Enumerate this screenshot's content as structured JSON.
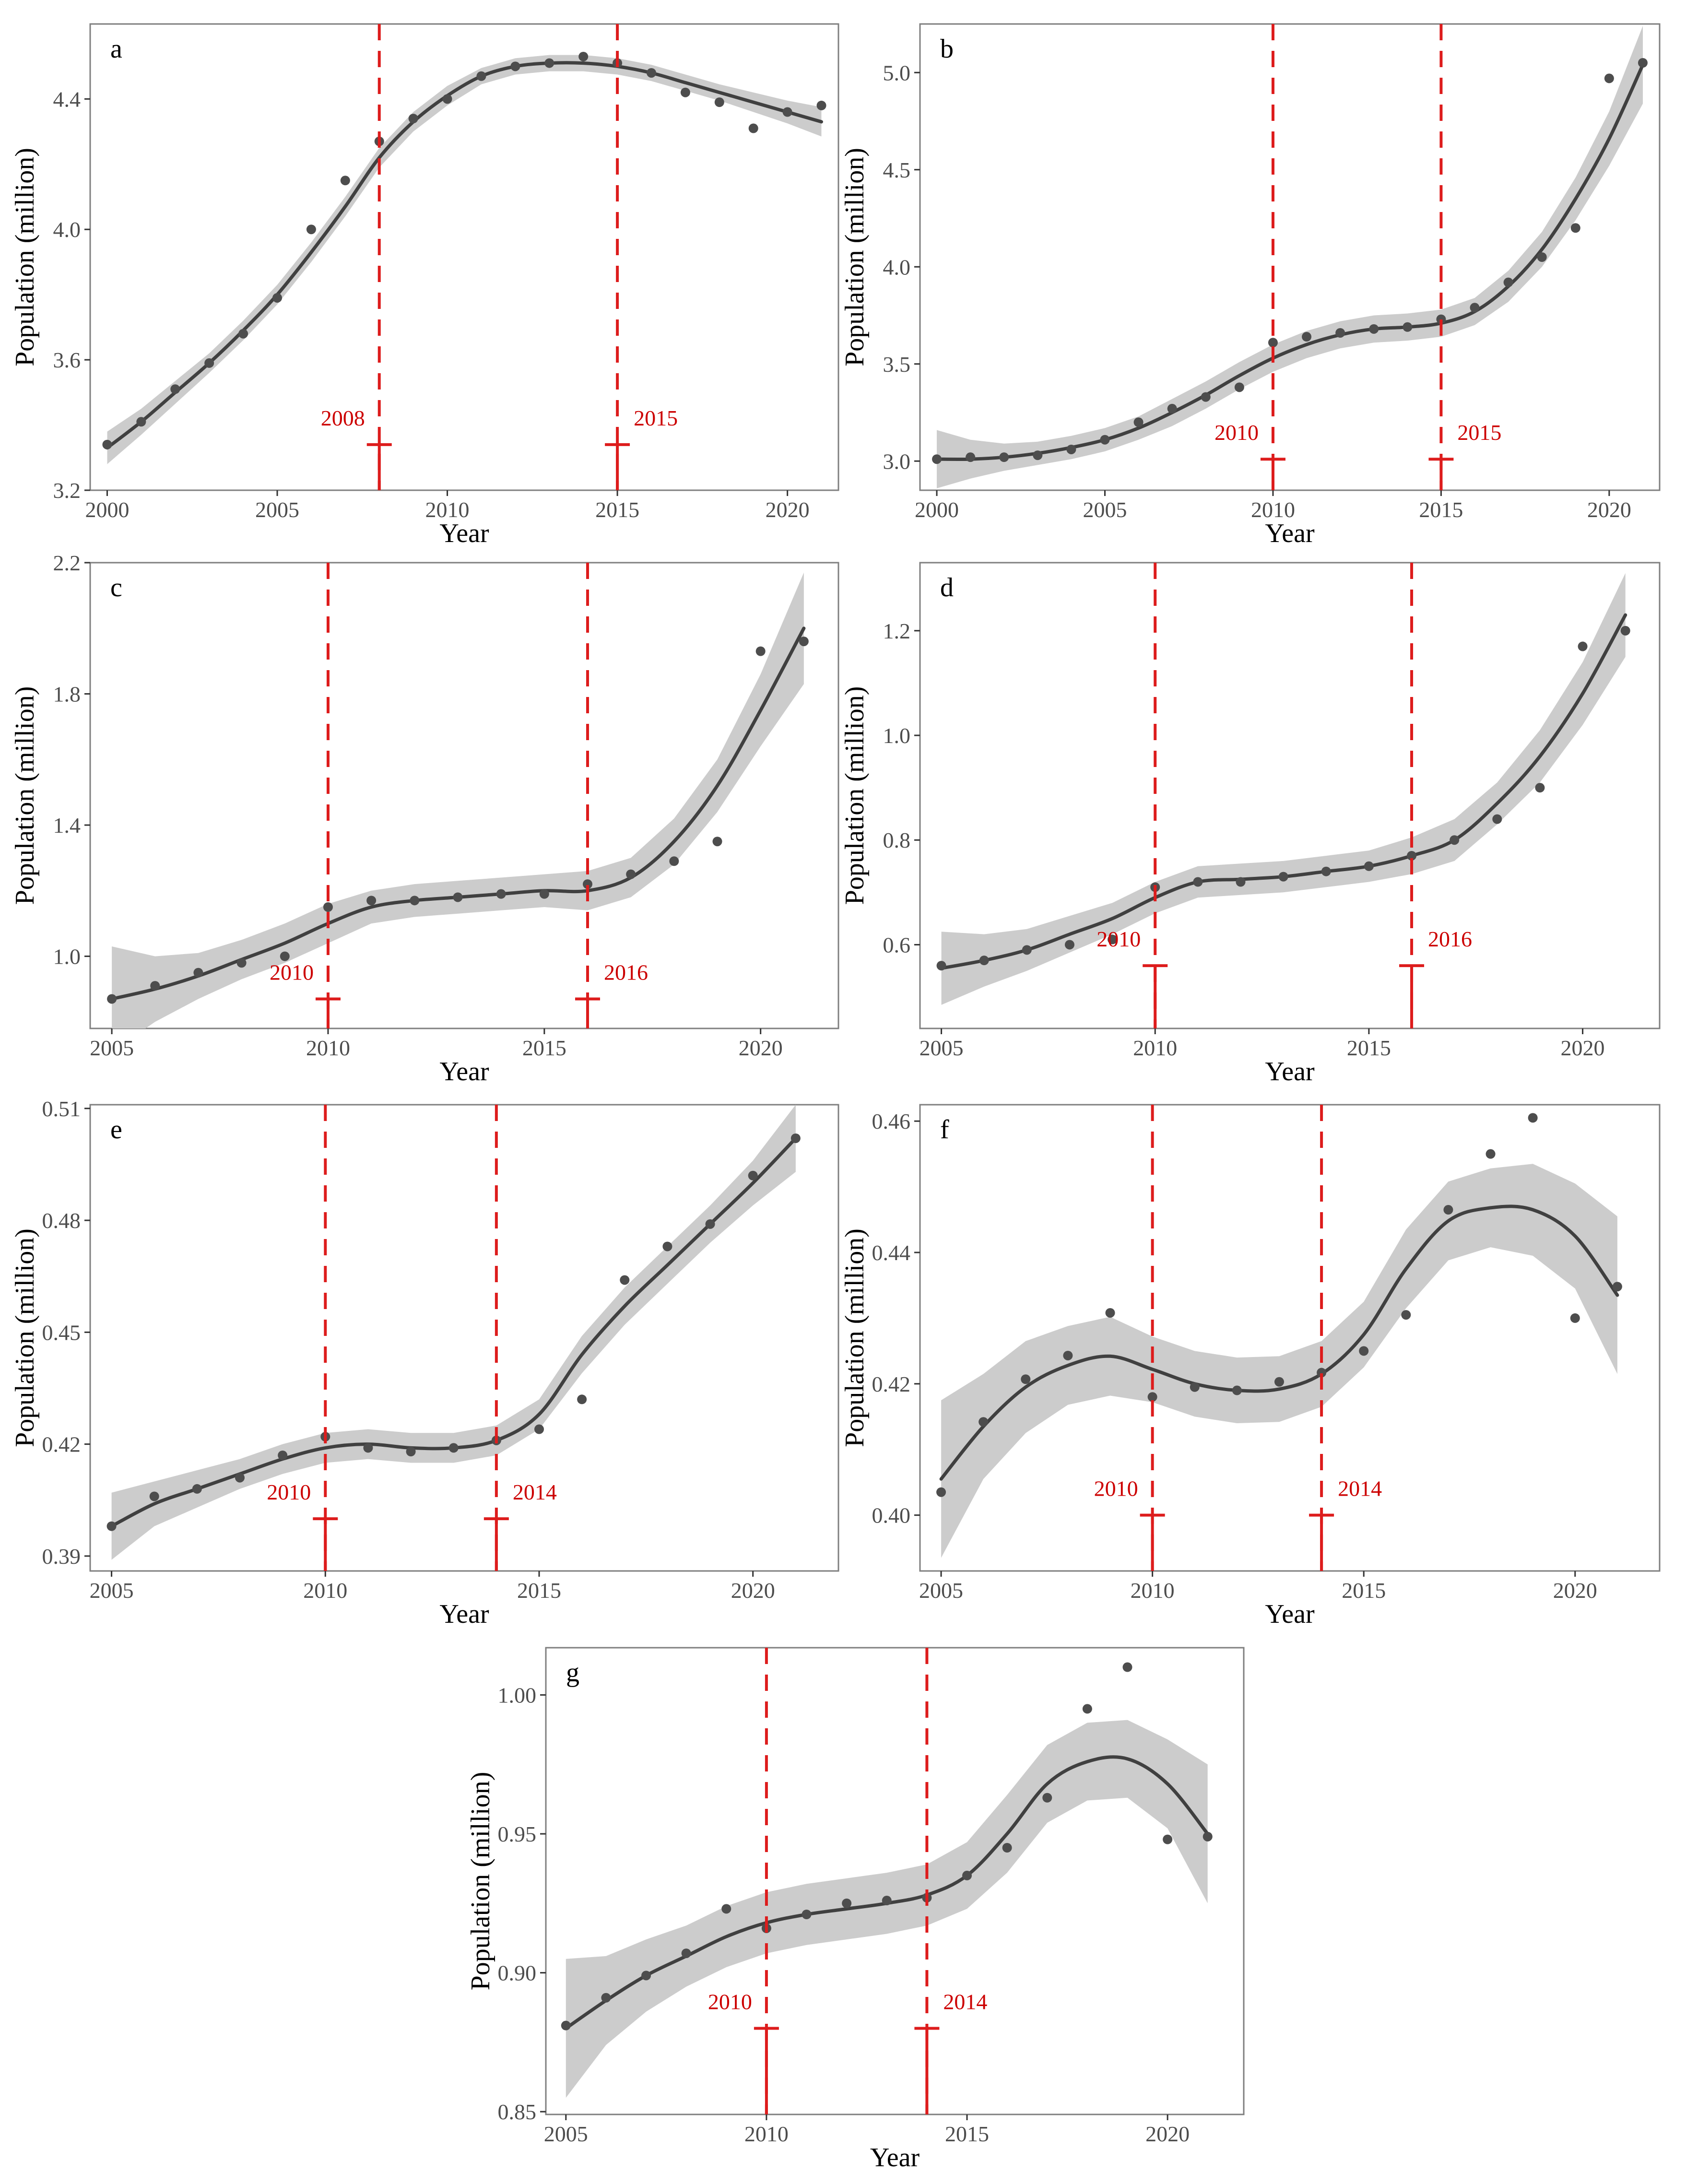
{
  "colors": {
    "points": "#4d4d4d",
    "trend": "#404040",
    "band": "#cccccc",
    "breaks": "#dd1c1c",
    "break_text": "#cc0000",
    "frame": "#7f7f7f"
  },
  "chart_data": [
    {
      "type": "scatter",
      "letter": "a",
      "xlabel": "Year",
      "ylabel": "Population (million)",
      "xlim": [
        1999.5,
        2021.5
      ],
      "ylim": [
        3.2,
        4.63
      ],
      "xticks": [
        2000,
        2005,
        2010,
        2015,
        2020
      ],
      "xtick_labels": [
        "2000",
        "2005",
        "2010",
        "2015",
        "2020"
      ],
      "yticks": [
        3.2,
        3.6,
        4.0,
        4.4
      ],
      "ytick_labels": [
        "3.2",
        "3.6",
        "4.0",
        "4.4"
      ],
      "x": [
        2000,
        2001,
        2002,
        2003,
        2004,
        2005,
        2006,
        2007,
        2008,
        2009,
        2010,
        2011,
        2012,
        2013,
        2014,
        2015,
        2016,
        2017,
        2018,
        2019,
        2020,
        2021
      ],
      "points": [
        3.34,
        3.41,
        3.51,
        3.59,
        3.68,
        3.79,
        4.0,
        4.15,
        4.27,
        4.34,
        4.4,
        4.47,
        4.5,
        4.51,
        4.53,
        4.51,
        4.48,
        4.42,
        4.39,
        4.31,
        4.36,
        4.38
      ],
      "fit": [
        3.33,
        3.41,
        3.5,
        3.59,
        3.69,
        3.8,
        3.93,
        4.07,
        4.22,
        4.33,
        4.41,
        4.47,
        4.5,
        4.51,
        4.51,
        4.5,
        4.48,
        4.45,
        4.42,
        4.39,
        4.36,
        4.33
      ],
      "band_half": [
        0.05,
        0.04,
        0.035,
        0.03,
        0.03,
        0.03,
        0.03,
        0.03,
        0.03,
        0.03,
        0.03,
        0.025,
        0.025,
        0.025,
        0.025,
        0.025,
        0.025,
        0.025,
        0.025,
        0.03,
        0.035,
        0.045
      ],
      "breaks": [
        {
          "year": 2008,
          "label": "2008",
          "side": "left",
          "mark_y": 3.34
        },
        {
          "year": 2015,
          "label": "2015",
          "side": "right",
          "mark_y": 3.34
        }
      ]
    },
    {
      "type": "scatter",
      "letter": "b",
      "xlabel": "Year",
      "ylabel": "Population (million)",
      "xlim": [
        1999.5,
        2021.5
      ],
      "ylim": [
        2.85,
        5.25
      ],
      "xticks": [
        2000,
        2005,
        2010,
        2015,
        2020
      ],
      "xtick_labels": [
        "2000",
        "2005",
        "2010",
        "2015",
        "2020"
      ],
      "yticks": [
        3.0,
        3.5,
        4.0,
        4.5,
        5.0
      ],
      "ytick_labels": [
        "3.0",
        "3.5",
        "4.0",
        "4.5",
        "5.0"
      ],
      "x": [
        2000,
        2001,
        2002,
        2003,
        2004,
        2005,
        2006,
        2007,
        2008,
        2009,
        2010,
        2011,
        2012,
        2013,
        2014,
        2015,
        2016,
        2017,
        2018,
        2019,
        2020,
        2021
      ],
      "points": [
        3.01,
        3.02,
        3.02,
        3.03,
        3.06,
        3.11,
        3.2,
        3.27,
        3.33,
        3.38,
        3.61,
        3.64,
        3.66,
        3.68,
        3.69,
        3.73,
        3.79,
        3.92,
        4.05,
        4.2,
        4.97,
        5.05
      ],
      "fit": [
        3.01,
        3.01,
        3.02,
        3.04,
        3.07,
        3.11,
        3.17,
        3.25,
        3.34,
        3.44,
        3.53,
        3.6,
        3.65,
        3.68,
        3.69,
        3.71,
        3.77,
        3.9,
        4.09,
        4.35,
        4.66,
        5.04
      ],
      "band_half": [
        0.15,
        0.1,
        0.07,
        0.06,
        0.06,
        0.06,
        0.06,
        0.07,
        0.07,
        0.07,
        0.07,
        0.07,
        0.07,
        0.07,
        0.07,
        0.07,
        0.07,
        0.08,
        0.09,
        0.11,
        0.14,
        0.2
      ],
      "breaks": [
        {
          "year": 2010,
          "label": "2010",
          "side": "left",
          "mark_y": 3.01
        },
        {
          "year": 2015,
          "label": "2015",
          "side": "right",
          "mark_y": 3.01
        }
      ]
    },
    {
      "type": "scatter",
      "letter": "c",
      "xlabel": "Year",
      "ylabel": "Population (million)",
      "xlim": [
        2004.5,
        2021.8
      ],
      "ylim": [
        0.78,
        2.2
      ],
      "xticks": [
        2005,
        2010,
        2015,
        2020
      ],
      "xtick_labels": [
        "2005",
        "2010",
        "2015",
        "2020"
      ],
      "yticks": [
        1.0,
        1.4,
        1.8,
        2.2
      ],
      "ytick_labels": [
        "1.0",
        "1.4",
        "1.8",
        "2.2"
      ],
      "x": [
        2005,
        2006,
        2007,
        2008,
        2009,
        2010,
        2011,
        2012,
        2013,
        2014,
        2015,
        2016,
        2017,
        2018,
        2019,
        2020,
        2021
      ],
      "points": [
        0.87,
        0.91,
        0.95,
        0.98,
        1.0,
        1.15,
        1.17,
        1.17,
        1.18,
        1.19,
        1.19,
        1.22,
        1.25,
        1.29,
        1.35,
        1.93,
        1.96
      ],
      "fit": [
        0.87,
        0.9,
        0.94,
        0.99,
        1.04,
        1.1,
        1.15,
        1.17,
        1.18,
        1.19,
        1.2,
        1.2,
        1.24,
        1.35,
        1.52,
        1.75,
        2.0
      ],
      "band_half": [
        0.16,
        0.1,
        0.07,
        0.06,
        0.06,
        0.06,
        0.05,
        0.05,
        0.05,
        0.05,
        0.05,
        0.06,
        0.06,
        0.07,
        0.08,
        0.11,
        0.17
      ],
      "breaks": [
        {
          "year": 2010,
          "label": "2010",
          "side": "left",
          "mark_y": 0.87
        },
        {
          "year": 2016,
          "label": "2016",
          "side": "right",
          "mark_y": 0.87
        }
      ]
    },
    {
      "type": "scatter",
      "letter": "d",
      "xlabel": "Year",
      "ylabel": "Population (million)",
      "xlim": [
        2004.5,
        2021.8
      ],
      "ylim": [
        0.44,
        1.33
      ],
      "xticks": [
        2005,
        2010,
        2015,
        2020
      ],
      "xtick_labels": [
        "2005",
        "2010",
        "2015",
        "2020"
      ],
      "yticks": [
        0.6,
        0.8,
        1.0,
        1.2
      ],
      "ytick_labels": [
        "0.6",
        "0.8",
        "1.0",
        "1.2"
      ],
      "x": [
        2005,
        2006,
        2007,
        2008,
        2009,
        2010,
        2011,
        2012,
        2013,
        2014,
        2015,
        2016,
        2017,
        2018,
        2019,
        2020,
        2021
      ],
      "points": [
        0.56,
        0.57,
        0.59,
        0.6,
        0.61,
        0.71,
        0.72,
        0.72,
        0.73,
        0.74,
        0.75,
        0.77,
        0.8,
        0.84,
        0.9,
        1.17,
        1.2
      ],
      "fit": [
        0.555,
        0.57,
        0.59,
        0.62,
        0.65,
        0.69,
        0.72,
        0.725,
        0.73,
        0.74,
        0.75,
        0.77,
        0.8,
        0.87,
        0.96,
        1.08,
        1.23
      ],
      "band_half": [
        0.07,
        0.05,
        0.04,
        0.035,
        0.03,
        0.03,
        0.03,
        0.03,
        0.03,
        0.03,
        0.03,
        0.035,
        0.04,
        0.04,
        0.05,
        0.06,
        0.08
      ],
      "breaks": [
        {
          "year": 2010,
          "label": "2010",
          "side": "left",
          "mark_y": 0.56
        },
        {
          "year": 2016,
          "label": "2016",
          "side": "right",
          "mark_y": 0.56
        }
      ]
    },
    {
      "type": "scatter",
      "letter": "e",
      "xlabel": "Year",
      "ylabel": "Population (million)",
      "xlim": [
        2004.5,
        2022.0
      ],
      "ylim": [
        0.386,
        0.511
      ],
      "xticks": [
        2005,
        2010,
        2015,
        2020
      ],
      "xtick_labels": [
        "2005",
        "2010",
        "2015",
        "2020"
      ],
      "yticks": [
        0.39,
        0.42,
        0.45,
        0.48,
        0.51
      ],
      "ytick_labels": [
        "0.39",
        "0.42",
        "0.45",
        "0.48",
        "0.51"
      ],
      "x": [
        2005,
        2006,
        2007,
        2008,
        2009,
        2010,
        2011,
        2012,
        2013,
        2014,
        2015,
        2016,
        2017,
        2018,
        2019,
        2020,
        2021
      ],
      "points": [
        0.398,
        0.406,
        0.408,
        0.411,
        0.417,
        0.422,
        0.419,
        0.418,
        0.419,
        0.421,
        0.424,
        0.432,
        0.464,
        0.473,
        0.479,
        0.492,
        0.502
      ],
      "fit": [
        0.398,
        0.404,
        0.408,
        0.412,
        0.416,
        0.419,
        0.42,
        0.419,
        0.419,
        0.421,
        0.428,
        0.444,
        0.457,
        0.468,
        0.479,
        0.49,
        0.502
      ],
      "band_half": [
        0.009,
        0.006,
        0.005,
        0.004,
        0.004,
        0.004,
        0.004,
        0.004,
        0.004,
        0.004,
        0.004,
        0.005,
        0.005,
        0.005,
        0.005,
        0.006,
        0.009
      ],
      "breaks": [
        {
          "year": 2010,
          "label": "2010",
          "side": "left",
          "mark_y": 0.4
        },
        {
          "year": 2014,
          "label": "2014",
          "side": "right",
          "mark_y": 0.4
        }
      ]
    },
    {
      "type": "scatter",
      "letter": "f",
      "xlabel": "Year",
      "ylabel": "Population (million)",
      "xlim": [
        2004.5,
        2022.0
      ],
      "ylim": [
        0.3915,
        0.4625
      ],
      "xticks": [
        2005,
        2010,
        2015,
        2020
      ],
      "xtick_labels": [
        "2005",
        "2010",
        "2015",
        "2020"
      ],
      "yticks": [
        0.4,
        0.42,
        0.44,
        0.46
      ],
      "ytick_labels": [
        "0.40",
        "0.42",
        "0.44",
        "0.46"
      ],
      "x": [
        2005,
        2006,
        2007,
        2008,
        2009,
        2010,
        2011,
        2012,
        2013,
        2014,
        2015,
        2016,
        2017,
        2018,
        2019,
        2020,
        2021
      ],
      "points": [
        0.4035,
        0.4142,
        0.4207,
        0.4243,
        0.4308,
        0.418,
        0.4195,
        0.419,
        0.4203,
        0.4217,
        0.425,
        0.4305,
        0.4465,
        0.455,
        0.4605,
        0.43,
        0.4348
      ],
      "fit": [
        0.4055,
        0.4135,
        0.4195,
        0.4228,
        0.4242,
        0.4222,
        0.42,
        0.419,
        0.4192,
        0.4215,
        0.4275,
        0.4375,
        0.4448,
        0.4468,
        0.4465,
        0.4425,
        0.4335
      ],
      "band_half": [
        0.012,
        0.008,
        0.007,
        0.006,
        0.006,
        0.005,
        0.005,
        0.005,
        0.005,
        0.005,
        0.005,
        0.006,
        0.006,
        0.006,
        0.007,
        0.008,
        0.012
      ],
      "breaks": [
        {
          "year": 2010,
          "label": "2010",
          "side": "left",
          "mark_y": 0.4
        },
        {
          "year": 2014,
          "label": "2014",
          "side": "right",
          "mark_y": 0.4
        }
      ]
    },
    {
      "type": "scatter",
      "letter": "g",
      "xlabel": "Year",
      "ylabel": "Population (million)",
      "xlim": [
        2004.5,
        2021.9
      ],
      "ylim": [
        0.849,
        1.017
      ],
      "xticks": [
        2005,
        2010,
        2015,
        2020
      ],
      "xtick_labels": [
        "2005",
        "2010",
        "2015",
        "2020"
      ],
      "yticks": [
        0.85,
        0.9,
        0.95,
        1.0
      ],
      "ytick_labels": [
        "0.85",
        "0.90",
        "0.95",
        "1.00"
      ],
      "x": [
        2005,
        2006,
        2007,
        2008,
        2009,
        2010,
        2011,
        2012,
        2013,
        2014,
        2015,
        2016,
        2017,
        2018,
        2019,
        2020,
        2021
      ],
      "points": [
        0.881,
        0.891,
        0.899,
        0.907,
        0.923,
        0.916,
        0.921,
        0.925,
        0.926,
        0.927,
        0.935,
        0.945,
        0.963,
        0.995,
        1.01,
        0.948,
        0.949
      ],
      "fit": [
        0.88,
        0.89,
        0.899,
        0.906,
        0.913,
        0.918,
        0.921,
        0.923,
        0.925,
        0.928,
        0.935,
        0.95,
        0.968,
        0.976,
        0.977,
        0.968,
        0.95
      ],
      "band_half": [
        0.025,
        0.016,
        0.013,
        0.011,
        0.011,
        0.011,
        0.011,
        0.011,
        0.011,
        0.011,
        0.012,
        0.014,
        0.014,
        0.014,
        0.014,
        0.016,
        0.025
      ],
      "breaks": [
        {
          "year": 2010,
          "label": "2010",
          "side": "left",
          "mark_y": 0.88
        },
        {
          "year": 2014,
          "label": "2014",
          "side": "right",
          "mark_y": 0.88
        }
      ]
    }
  ]
}
